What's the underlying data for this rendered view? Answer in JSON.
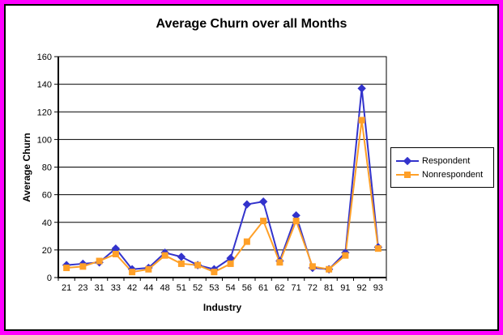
{
  "frame": {
    "border_color": "#ff00ff",
    "inner_border_color": "#000000",
    "background": "#ffffff"
  },
  "chart_data": {
    "type": "line",
    "title": "Average Churn over all Months",
    "xlabel": "Industry",
    "ylabel": "Average Churn",
    "ylim": [
      0,
      160
    ],
    "yticks": [
      0,
      20,
      40,
      60,
      80,
      100,
      120,
      140,
      160
    ],
    "grid": "horizontal",
    "legend_position": "right",
    "categories": [
      "21",
      "23",
      "31",
      "33",
      "42",
      "44",
      "48",
      "51",
      "52",
      "53",
      "54",
      "56",
      "61",
      "62",
      "71",
      "72",
      "81",
      "91",
      "92",
      "93"
    ],
    "series": [
      {
        "name": "Respondent",
        "marker": "diamond",
        "color": "#3333cc",
        "values": [
          9,
          10,
          11,
          21,
          6,
          7,
          18,
          15,
          9,
          6,
          14,
          53,
          55,
          12,
          45,
          7,
          6,
          18,
          137,
          22
        ]
      },
      {
        "name": "Nonrespondent",
        "marker": "square",
        "color": "#ffa028",
        "values": [
          7,
          8,
          12,
          17,
          4,
          6,
          16,
          10,
          9,
          4,
          10,
          26,
          41,
          11,
          41,
          8,
          6,
          16,
          114,
          21
        ]
      }
    ]
  }
}
